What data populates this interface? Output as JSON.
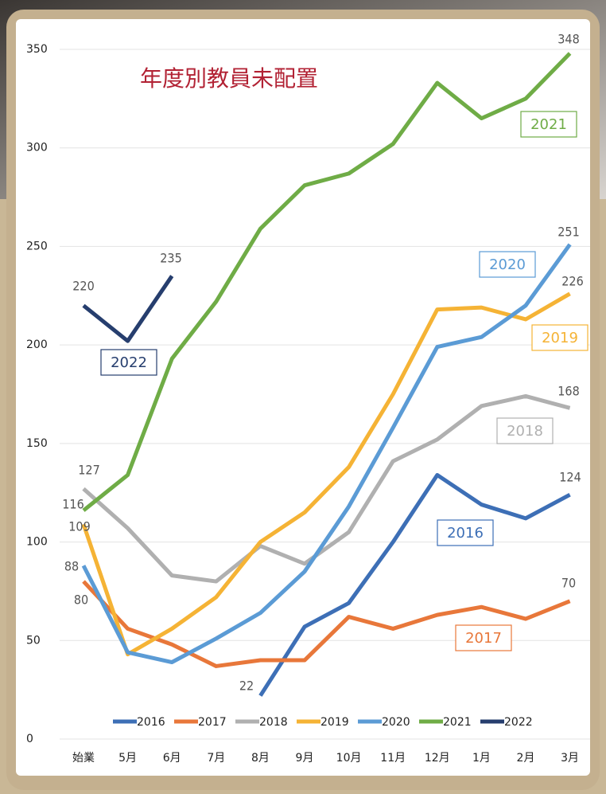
{
  "chart_data": {
    "type": "line",
    "title": "年度別教員未配置",
    "categories": [
      "始業",
      "5月",
      "6月",
      "7月",
      "8月",
      "9月",
      "10月",
      "11月",
      "12月",
      "1月",
      "2月",
      "3月"
    ],
    "series": [
      {
        "name": "2016",
        "color": "#3d6fb6",
        "values": [
          null,
          null,
          null,
          null,
          22,
          57,
          69,
          100,
          134,
          119,
          112,
          124
        ]
      },
      {
        "name": "2017",
        "color": "#e8773a",
        "values": [
          80,
          56,
          48,
          37,
          40,
          40,
          62,
          56,
          63,
          67,
          61,
          70
        ]
      },
      {
        "name": "2018",
        "color": "#b0b0b0",
        "values": [
          127,
          107,
          83,
          80,
          98,
          89,
          105,
          141,
          152,
          169,
          174,
          168
        ]
      },
      {
        "name": "2019",
        "color": "#f5b335",
        "values": [
          109,
          43,
          56,
          72,
          100,
          115,
          138,
          175,
          218,
          219,
          213,
          226
        ]
      },
      {
        "name": "2020",
        "color": "#5b9bd5",
        "values": [
          88,
          44,
          39,
          51,
          64,
          85,
          118,
          158,
          199,
          204,
          220,
          251
        ]
      },
      {
        "name": "2021",
        "color": "#6fac46",
        "values": [
          116,
          134,
          193,
          222,
          259,
          281,
          287,
          302,
          333,
          315,
          325,
          348
        ]
      },
      {
        "name": "2022",
        "color": "#263e6e",
        "values": [
          220,
          202,
          235,
          null,
          null,
          null,
          null,
          null,
          null,
          null,
          null,
          null
        ]
      }
    ],
    "ylim": [
      0,
      350
    ],
    "yticks": [
      0,
      50,
      100,
      150,
      200,
      250,
      300,
      350
    ],
    "grid": true,
    "legend": "bottom"
  }
}
